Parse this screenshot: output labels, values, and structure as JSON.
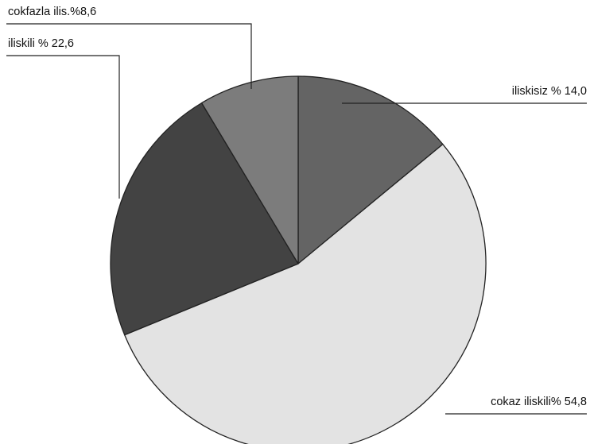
{
  "chart_data": {
    "type": "pie",
    "title": "",
    "legend": "none",
    "slices": [
      {
        "label": "iliskisiz % 14,0",
        "value": 14.0,
        "color": "#646464"
      },
      {
        "label": "cokaz iliskili% 54,8",
        "value": 54.8,
        "color": "#e3e3e3"
      },
      {
        "label": "iliskili % 22,6",
        "value": 22.6,
        "color": "#434343"
      },
      {
        "label": "cokfazla ilis.%8,6",
        "value": 8.6,
        "color": "#7c7c7c"
      }
    ],
    "start_angle": "12 o'clock",
    "direction": "clockwise",
    "edge_color": "#222222",
    "leader_color": "#222222"
  }
}
